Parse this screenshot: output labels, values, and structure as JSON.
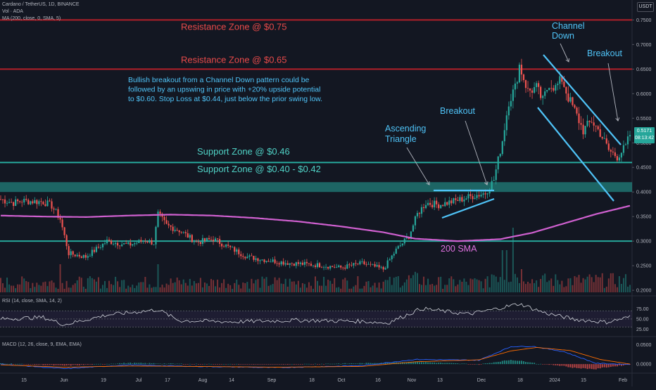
{
  "header": {
    "symbol_line": "Cardano / TetherUS, 1D, BINANCE",
    "vol_line": "Vol · ADA",
    "ma_line": "MA (200, close, 0, SMA, 5)",
    "rsi_line": "RSI (14, close, SMA, 14, 2)",
    "macd_line": "MACD (12, 26, close, 9, EMA, EMA)",
    "currency_badge": "USDT"
  },
  "last_price": {
    "value": "0.5171",
    "countdown": "08:13:42"
  },
  "colors": {
    "background": "#131722",
    "up": "#26a69a",
    "down": "#ef5350",
    "resistance": "#b2202a",
    "support": "#26a69a",
    "sma": "#d060d0",
    "annotation_text": "#4fc3f7",
    "channel": "#4fc3f7"
  },
  "chart_data": [
    {
      "type": "candlestick",
      "name": "price",
      "y_ticks": [
        "0.7500",
        "0.7000",
        "0.6500",
        "0.6000",
        "0.5500",
        "0.5000",
        "0.4500",
        "0.4000",
        "0.3500",
        "0.3000",
        "0.2500",
        "0.2000"
      ],
      "ylim": [
        0.193,
        0.762
      ],
      "x_ticks": [
        "15",
        "Jun",
        "19",
        "Jul",
        "17",
        "Aug",
        "14",
        "Sep",
        "18",
        "Oct",
        "16",
        "Nov",
        "13",
        "Dec",
        "18",
        "2024",
        "15",
        "Feb"
      ],
      "anchors": [
        {
          "t": 0,
          "p": 0.385
        },
        {
          "t": 6,
          "p": 0.378
        },
        {
          "t": 10,
          "p": 0.382
        },
        {
          "t": 20,
          "p": 0.38
        },
        {
          "t": 24,
          "p": 0.372
        },
        {
          "t": 28,
          "p": 0.345
        },
        {
          "t": 32,
          "p": 0.275
        },
        {
          "t": 40,
          "p": 0.268
        },
        {
          "t": 50,
          "p": 0.3
        },
        {
          "t": 60,
          "p": 0.292
        },
        {
          "t": 68,
          "p": 0.302
        },
        {
          "t": 72,
          "p": 0.296
        },
        {
          "t": 74,
          "p": 0.355
        },
        {
          "t": 78,
          "p": 0.332
        },
        {
          "t": 84,
          "p": 0.322
        },
        {
          "t": 92,
          "p": 0.298
        },
        {
          "t": 100,
          "p": 0.304
        },
        {
          "t": 108,
          "p": 0.286
        },
        {
          "t": 116,
          "p": 0.268
        },
        {
          "t": 124,
          "p": 0.262
        },
        {
          "t": 134,
          "p": 0.256
        },
        {
          "t": 150,
          "p": 0.251
        },
        {
          "t": 160,
          "p": 0.246
        },
        {
          "t": 170,
          "p": 0.255
        },
        {
          "t": 180,
          "p": 0.243
        },
        {
          "t": 186,
          "p": 0.282
        },
        {
          "t": 192,
          "p": 0.31
        },
        {
          "t": 196,
          "p": 0.355
        },
        {
          "t": 200,
          "p": 0.378
        },
        {
          "t": 206,
          "p": 0.374
        },
        {
          "t": 214,
          "p": 0.382
        },
        {
          "t": 222,
          "p": 0.392
        },
        {
          "t": 228,
          "p": 0.398
        },
        {
          "t": 232,
          "p": 0.425
        },
        {
          "t": 236,
          "p": 0.505
        },
        {
          "t": 239,
          "p": 0.585
        },
        {
          "t": 242,
          "p": 0.612
        },
        {
          "t": 244,
          "p": 0.658
        },
        {
          "t": 248,
          "p": 0.605
        },
        {
          "t": 252,
          "p": 0.612
        },
        {
          "t": 255,
          "p": 0.585
        },
        {
          "t": 258,
          "p": 0.622
        },
        {
          "t": 261,
          "p": 0.612
        },
        {
          "t": 264,
          "p": 0.63
        },
        {
          "t": 267,
          "p": 0.592
        },
        {
          "t": 270,
          "p": 0.565
        },
        {
          "t": 274,
          "p": 0.525
        },
        {
          "t": 278,
          "p": 0.545
        },
        {
          "t": 282,
          "p": 0.52
        },
        {
          "t": 286,
          "p": 0.485
        },
        {
          "t": 290,
          "p": 0.472
        },
        {
          "t": 294,
          "p": 0.492
        },
        {
          "t": 296,
          "p": 0.517
        }
      ],
      "levels": [
        {
          "label": "Resistance Zone @ $0.75",
          "price": 0.75,
          "kind": "resistance"
        },
        {
          "label": "Resistance Zone @ $0.65",
          "price": 0.65,
          "kind": "resistance"
        },
        {
          "label": "Support Zone @ $0.46",
          "price": 0.46,
          "kind": "support"
        },
        {
          "label": "Support Zone @ $0.40 - $0.42",
          "price_low": 0.4,
          "price_high": 0.42,
          "kind": "support-band"
        },
        {
          "label": "",
          "price": 0.3,
          "kind": "support"
        }
      ],
      "sma_200": [
        {
          "t": 0,
          "p": 0.352
        },
        {
          "t": 20,
          "p": 0.35
        },
        {
          "t": 40,
          "p": 0.349
        },
        {
          "t": 60,
          "p": 0.352
        },
        {
          "t": 80,
          "p": 0.354
        },
        {
          "t": 100,
          "p": 0.352
        },
        {
          "t": 120,
          "p": 0.347
        },
        {
          "t": 140,
          "p": 0.34
        },
        {
          "t": 160,
          "p": 0.33
        },
        {
          "t": 180,
          "p": 0.318
        },
        {
          "t": 195,
          "p": 0.305
        },
        {
          "t": 215,
          "p": 0.3
        },
        {
          "t": 235,
          "p": 0.304
        },
        {
          "t": 250,
          "p": 0.317
        },
        {
          "t": 265,
          "p": 0.336
        },
        {
          "t": 280,
          "p": 0.355
        },
        {
          "t": 296,
          "p": 0.372
        }
      ],
      "annotations": {
        "commentary": [
          "Bullish breakout from a Channel Down pattern could be",
          "followed by an upswing in price with +20% upside potential",
          "to $0.60. Stop Loss at $0.44, just below the prior swing low."
        ],
        "breakout_1": "Breakout",
        "breakout_2": "Breakout",
        "ascending_triangle": [
          "Ascending",
          "Triangle"
        ],
        "channel_down": [
          "Channel",
          "Down"
        ],
        "sma_label": "200 SMA"
      }
    },
    {
      "type": "line",
      "name": "RSI",
      "y_ticks": [
        "75.00",
        "50.00",
        "25.00"
      ],
      "ylim": [
        15,
        90
      ],
      "overbought": 70,
      "oversold": 30,
      "mid": 50,
      "anchors": [
        {
          "t": 0,
          "p": 50
        },
        {
          "t": 20,
          "p": 54
        },
        {
          "t": 30,
          "p": 36
        },
        {
          "t": 50,
          "p": 60
        },
        {
          "t": 74,
          "p": 73
        },
        {
          "t": 84,
          "p": 46
        },
        {
          "t": 110,
          "p": 43
        },
        {
          "t": 140,
          "p": 47
        },
        {
          "t": 170,
          "p": 44
        },
        {
          "t": 182,
          "p": 40
        },
        {
          "t": 198,
          "p": 76
        },
        {
          "t": 220,
          "p": 62
        },
        {
          "t": 232,
          "p": 74
        },
        {
          "t": 244,
          "p": 88
        },
        {
          "t": 256,
          "p": 65
        },
        {
          "t": 270,
          "p": 49
        },
        {
          "t": 285,
          "p": 42
        },
        {
          "t": 296,
          "p": 55
        }
      ]
    },
    {
      "type": "bar+line",
      "name": "MACD",
      "y_ticks": [
        "0.0500",
        "0.0000"
      ],
      "ylim": [
        -0.018,
        0.062
      ],
      "macd_anchors": [
        {
          "t": 0,
          "p": 0.0
        },
        {
          "t": 30,
          "p": -0.012
        },
        {
          "t": 60,
          "p": -0.002
        },
        {
          "t": 90,
          "p": -0.006
        },
        {
          "t": 130,
          "p": -0.009
        },
        {
          "t": 170,
          "p": -0.004
        },
        {
          "t": 195,
          "p": 0.012
        },
        {
          "t": 225,
          "p": 0.01
        },
        {
          "t": 240,
          "p": 0.045
        },
        {
          "t": 250,
          "p": 0.046
        },
        {
          "t": 265,
          "p": 0.032
        },
        {
          "t": 280,
          "p": 0.002
        },
        {
          "t": 296,
          "p": -0.001
        }
      ],
      "signal_anchors": [
        {
          "t": 0,
          "p": -0.002
        },
        {
          "t": 30,
          "p": -0.008
        },
        {
          "t": 60,
          "p": -0.005
        },
        {
          "t": 90,
          "p": -0.006
        },
        {
          "t": 130,
          "p": -0.008
        },
        {
          "t": 170,
          "p": -0.006
        },
        {
          "t": 195,
          "p": 0.006
        },
        {
          "t": 225,
          "p": 0.011
        },
        {
          "t": 240,
          "p": 0.034
        },
        {
          "t": 252,
          "p": 0.043
        },
        {
          "t": 268,
          "p": 0.035
        },
        {
          "t": 282,
          "p": 0.012
        },
        {
          "t": 296,
          "p": 0.0
        }
      ]
    }
  ]
}
